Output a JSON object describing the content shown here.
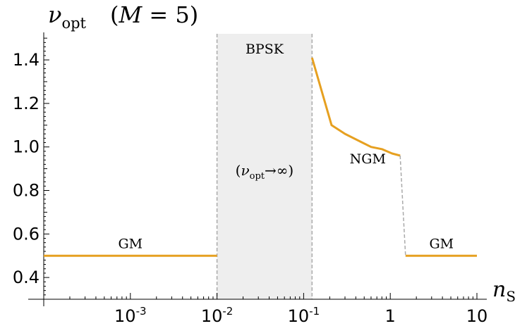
{
  "chart_data": {
    "type": "line",
    "title": "ν_opt   (M = 5)",
    "title_parts": {
      "nu": "ν",
      "sub": "opt",
      "rest": "(M = 5)"
    },
    "xlabel": {
      "main": "n",
      "sub": "S"
    },
    "ylabel": "",
    "x_scale": "log",
    "xlim": [
      0.0001,
      10
    ],
    "ylim": [
      0.3,
      1.52
    ],
    "grid": false,
    "x_ticks": [
      {
        "value": 0.001,
        "base": "10",
        "exp": "-3"
      },
      {
        "value": 0.01,
        "base": "10",
        "exp": "-2"
      },
      {
        "value": 0.1,
        "base": "10",
        "exp": "-1"
      },
      {
        "value": 1,
        "base": "1",
        "exp": ""
      },
      {
        "value": 10,
        "base": "10",
        "exp": ""
      }
    ],
    "y_ticks": [
      {
        "value": 0.4,
        "label": "0.4"
      },
      {
        "value": 0.6,
        "label": "0.6"
      },
      {
        "value": 0.8,
        "label": "0.8"
      },
      {
        "value": 1.0,
        "label": "1.0"
      },
      {
        "value": 1.2,
        "label": "1.2"
      },
      {
        "value": 1.4,
        "label": "1.4"
      }
    ],
    "shaded_region": {
      "x_range": [
        0.01,
        0.125
      ],
      "label": "BPSK",
      "note": {
        "nu": "ν",
        "sub": "opt",
        "arrow": "→",
        "inf": "∞"
      },
      "color": "#eeeeee",
      "border_color": "#aaaaaa"
    },
    "series": [
      {
        "segment": "gm-low",
        "color": "#e6a020",
        "points": [
          [
            0.0001,
            0.5
          ],
          [
            0.01,
            0.5
          ]
        ]
      },
      {
        "segment": "ngm",
        "color": "#e6a020",
        "points": [
          [
            0.125,
            1.41
          ],
          [
            0.21,
            1.1
          ],
          [
            0.3,
            1.06
          ],
          [
            0.45,
            1.025
          ],
          [
            0.6,
            1.0
          ],
          [
            0.8,
            0.99
          ],
          [
            1.05,
            0.97
          ],
          [
            1.3,
            0.96
          ]
        ]
      },
      {
        "segment": "gm-high",
        "color": "#e6a020",
        "points": [
          [
            1.5,
            0.5
          ],
          [
            10,
            0.5
          ]
        ]
      }
    ],
    "connector": {
      "color": "#aaaaaa",
      "points": [
        [
          1.3,
          0.96
        ],
        [
          1.5,
          0.5
        ]
      ]
    },
    "annotations": [
      {
        "text": "GM",
        "x": 0.001,
        "y": 0.535
      },
      {
        "text": "NGM",
        "x": 0.55,
        "y": 0.925
      },
      {
        "text": "GM",
        "x": 3.9,
        "y": 0.535
      }
    ],
    "colors": {
      "curve": "#e6a020",
      "axis": "#000000"
    }
  }
}
